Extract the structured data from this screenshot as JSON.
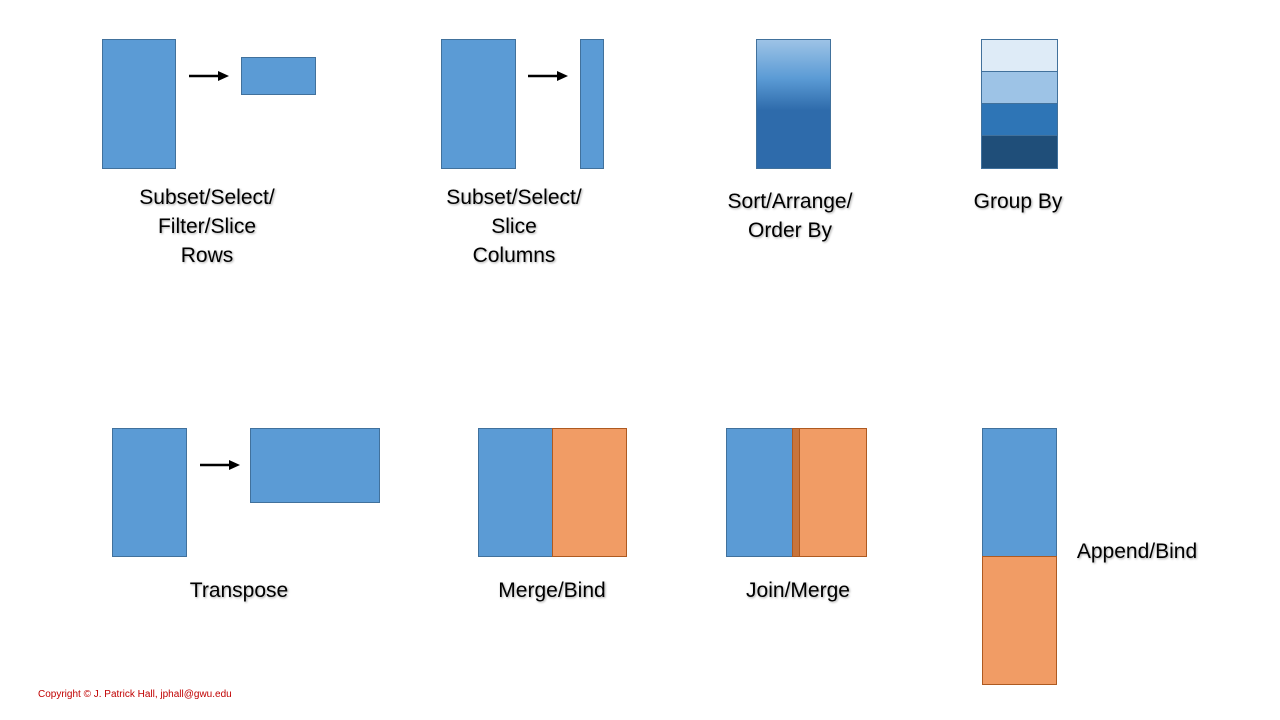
{
  "operations": {
    "subset_rows": {
      "lines": [
        "Subset/Select/",
        "Filter/Slice",
        "Rows"
      ]
    },
    "subset_columns": {
      "lines": [
        "Subset/Select/",
        "Slice",
        "Columns"
      ]
    },
    "sort": {
      "lines": [
        "Sort/Arrange/",
        "Order By"
      ]
    },
    "group_by": {
      "lines": [
        "Group By"
      ]
    },
    "transpose": {
      "lines": [
        "Transpose"
      ]
    },
    "merge_bind": {
      "lines": [
        "Merge/Bind"
      ]
    },
    "join_merge": {
      "lines": [
        "Join/Merge"
      ]
    },
    "append_bind": {
      "lines": [
        "Append/Bind"
      ]
    }
  },
  "copyright": "Copyright © J. Patrick Hall, jphall@gwu.edu",
  "colors": {
    "blue": "#5b9bd5",
    "blue_border": "#41719c",
    "orange": "#f19c65",
    "orange_border": "#ae5a21",
    "group_shades": [
      "#deebf7",
      "#9dc3e6",
      "#2e75b6",
      "#1f4e79"
    ],
    "copyright": "#c00000"
  },
  "icons": {
    "arrow": "right-arrow-icon"
  }
}
